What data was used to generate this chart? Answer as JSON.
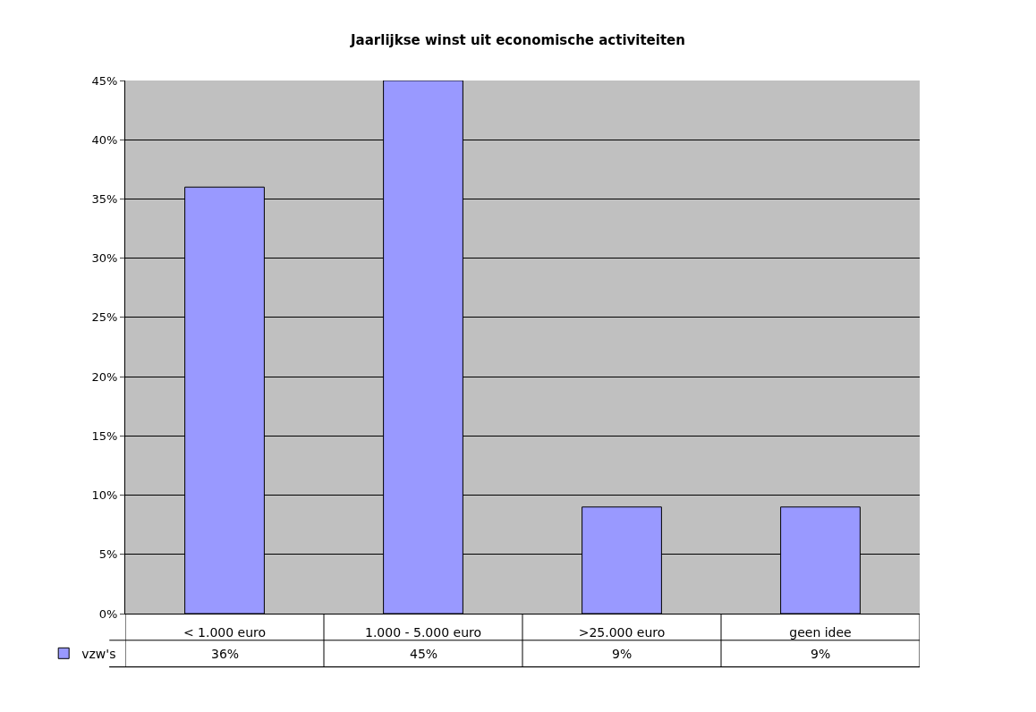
{
  "chart_data": {
    "type": "bar",
    "title": "Jaarlijkse winst uit economische activiteiten",
    "categories": [
      "< 1.000 euro",
      "1.000 - 5.000 euro",
      ">25.000 euro",
      "geen idee"
    ],
    "series": [
      {
        "name": "vzw's",
        "color": "#9999ff",
        "values": [
          36,
          45,
          9,
          9
        ],
        "value_labels": [
          "36%",
          "45%",
          "9%",
          "9%"
        ]
      }
    ],
    "ylim": [
      0,
      45
    ],
    "yticks": [
      {
        "value": 0,
        "label": "0%"
      },
      {
        "value": 5,
        "label": "5%"
      },
      {
        "value": 10,
        "label": "10%"
      },
      {
        "value": 15,
        "label": "15%"
      },
      {
        "value": 20,
        "label": "20%"
      },
      {
        "value": 25,
        "label": "25%"
      },
      {
        "value": 30,
        "label": "30%"
      },
      {
        "value": 35,
        "label": "35%"
      },
      {
        "value": 40,
        "label": "40%"
      },
      {
        "value": 45,
        "label": "45%"
      }
    ],
    "grid": "y",
    "legend": "bottom left"
  }
}
